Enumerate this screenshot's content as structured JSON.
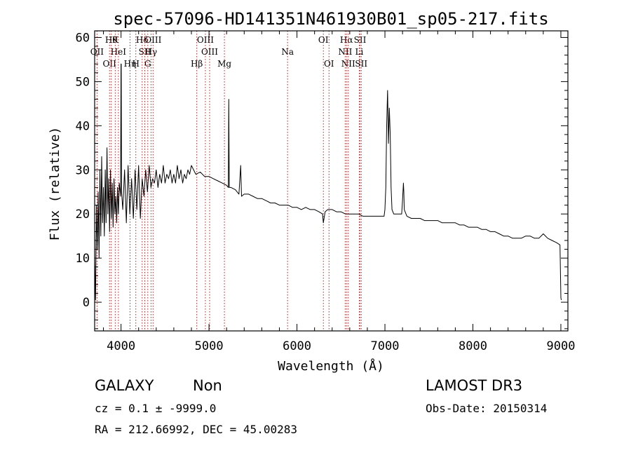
{
  "chart_data": {
    "type": "line",
    "title": "spec-57096-HD141351N461930B01_sp05-217.fits",
    "xlabel": "Wavelength (Å)",
    "ylabel": "Flux (relative)",
    "xlim": [
      3700,
      9080
    ],
    "ylim": [
      -6.5,
      61.5
    ],
    "x_ticks": [
      {
        "value": 4000,
        "label": "4000"
      },
      {
        "value": 5000,
        "label": "5000"
      },
      {
        "value": 6000,
        "label": "6000"
      },
      {
        "value": 7000,
        "label": "7000"
      },
      {
        "value": 8000,
        "label": "8000"
      },
      {
        "value": 9000,
        "label": "9000"
      }
    ],
    "y_ticks": [
      {
        "value": 0,
        "label": "0"
      },
      {
        "value": 10,
        "label": "10"
      },
      {
        "value": 20,
        "label": "20"
      },
      {
        "value": 30,
        "label": "30"
      },
      {
        "value": 40,
        "label": "40"
      },
      {
        "value": 50,
        "label": "50"
      },
      {
        "value": 60,
        "label": "60"
      }
    ],
    "series": [
      {
        "name": "spectrum",
        "color": "#000000",
        "points": [
          [
            3700,
            10
          ],
          [
            3710,
            0.5
          ],
          [
            3720,
            22
          ],
          [
            3730,
            12
          ],
          [
            3740,
            25
          ],
          [
            3750,
            10
          ],
          [
            3760,
            30
          ],
          [
            3770,
            15
          ],
          [
            3780,
            33
          ],
          [
            3790,
            18
          ],
          [
            3800,
            26
          ],
          [
            3810,
            15
          ],
          [
            3820,
            30
          ],
          [
            3830,
            18
          ],
          [
            3840,
            35
          ],
          [
            3850,
            20
          ],
          [
            3860,
            28
          ],
          [
            3870,
            16
          ],
          [
            3880,
            30
          ],
          [
            3890,
            19
          ],
          [
            3900,
            27
          ],
          [
            3910,
            17
          ],
          [
            3920,
            28
          ],
          [
            3930,
            20
          ],
          [
            3940,
            24
          ],
          [
            3950,
            18
          ],
          [
            3960,
            26
          ],
          [
            3970,
            20
          ],
          [
            3980,
            27
          ],
          [
            3995,
            24
          ],
          [
            4000,
            54
          ],
          [
            4002,
            54
          ],
          [
            4006,
            25
          ],
          [
            4020,
            21
          ],
          [
            4040,
            30
          ],
          [
            4060,
            18
          ],
          [
            4080,
            31
          ],
          [
            4100,
            20
          ],
          [
            4120,
            28
          ],
          [
            4140,
            19
          ],
          [
            4160,
            30
          ],
          [
            4180,
            21
          ],
          [
            4200,
            31
          ],
          [
            4220,
            19
          ],
          [
            4240,
            28
          ],
          [
            4260,
            24
          ],
          [
            4280,
            30
          ],
          [
            4300,
            25
          ],
          [
            4320,
            31
          ],
          [
            4340,
            26
          ],
          [
            4360,
            28
          ],
          [
            4380,
            27
          ],
          [
            4400,
            30
          ],
          [
            4420,
            26
          ],
          [
            4440,
            29
          ],
          [
            4460,
            27
          ],
          [
            4480,
            31
          ],
          [
            4500,
            27
          ],
          [
            4520,
            29
          ],
          [
            4540,
            28
          ],
          [
            4560,
            30
          ],
          [
            4580,
            27
          ],
          [
            4600,
            29
          ],
          [
            4620,
            27
          ],
          [
            4640,
            31
          ],
          [
            4660,
            28
          ],
          [
            4680,
            30
          ],
          [
            4700,
            27
          ],
          [
            4720,
            29
          ],
          [
            4740,
            28
          ],
          [
            4760,
            30
          ],
          [
            4780,
            29
          ],
          [
            4800,
            31
          ],
          [
            4850,
            29
          ],
          [
            4900,
            29.5
          ],
          [
            4950,
            28.5
          ],
          [
            5000,
            28.5
          ],
          [
            5050,
            28
          ],
          [
            5100,
            27.5
          ],
          [
            5150,
            27
          ],
          [
            5200,
            26.5
          ],
          [
            5220,
            26
          ],
          [
            5225,
            46
          ],
          [
            5230,
            26
          ],
          [
            5250,
            26
          ],
          [
            5300,
            25.5
          ],
          [
            5340,
            24.5
          ],
          [
            5360,
            31
          ],
          [
            5370,
            24
          ],
          [
            5400,
            24.5
          ],
          [
            5450,
            24.5
          ],
          [
            5500,
            24
          ],
          [
            5550,
            23.5
          ],
          [
            5600,
            23.5
          ],
          [
            5650,
            23
          ],
          [
            5700,
            22.5
          ],
          [
            5750,
            22.5
          ],
          [
            5800,
            22
          ],
          [
            5850,
            22
          ],
          [
            5900,
            22
          ],
          [
            5950,
            21.5
          ],
          [
            6000,
            21.5
          ],
          [
            6050,
            21
          ],
          [
            6100,
            21.5
          ],
          [
            6150,
            21
          ],
          [
            6200,
            21
          ],
          [
            6250,
            20.5
          ],
          [
            6290,
            20
          ],
          [
            6300,
            18
          ],
          [
            6320,
            20.5
          ],
          [
            6350,
            21
          ],
          [
            6400,
            21
          ],
          [
            6450,
            20.5
          ],
          [
            6500,
            20.5
          ],
          [
            6550,
            20
          ],
          [
            6600,
            20
          ],
          [
            6650,
            20
          ],
          [
            6700,
            20
          ],
          [
            6750,
            19.5
          ],
          [
            6800,
            19.5
          ],
          [
            6850,
            19.5
          ],
          [
            6900,
            19.5
          ],
          [
            6950,
            19.5
          ],
          [
            6990,
            19.5
          ],
          [
            7000,
            21
          ],
          [
            7010,
            26
          ],
          [
            7020,
            40
          ],
          [
            7030,
            48
          ],
          [
            7040,
            36
          ],
          [
            7050,
            44
          ],
          [
            7060,
            38
          ],
          [
            7070,
            26
          ],
          [
            7080,
            21
          ],
          [
            7100,
            20
          ],
          [
            7150,
            20
          ],
          [
            7190,
            20
          ],
          [
            7200,
            23
          ],
          [
            7210,
            27
          ],
          [
            7215,
            25
          ],
          [
            7220,
            21
          ],
          [
            7250,
            19.5
          ],
          [
            7300,
            19
          ],
          [
            7350,
            19
          ],
          [
            7400,
            19
          ],
          [
            7450,
            18.5
          ],
          [
            7500,
            18.5
          ],
          [
            7550,
            18.5
          ],
          [
            7600,
            18.5
          ],
          [
            7650,
            18
          ],
          [
            7700,
            18
          ],
          [
            7750,
            18
          ],
          [
            7800,
            18
          ],
          [
            7850,
            17.5
          ],
          [
            7900,
            17.5
          ],
          [
            7950,
            17
          ],
          [
            8000,
            17
          ],
          [
            8050,
            17
          ],
          [
            8100,
            16.5
          ],
          [
            8150,
            16.5
          ],
          [
            8200,
            16
          ],
          [
            8250,
            16
          ],
          [
            8300,
            15.5
          ],
          [
            8350,
            15
          ],
          [
            8400,
            15
          ],
          [
            8450,
            14.5
          ],
          [
            8500,
            14.5
          ],
          [
            8550,
            14.5
          ],
          [
            8600,
            15
          ],
          [
            8650,
            15
          ],
          [
            8700,
            14.5
          ],
          [
            8750,
            14.5
          ],
          [
            8800,
            15.5
          ],
          [
            8850,
            14.5
          ],
          [
            8900,
            14
          ],
          [
            8950,
            13.5
          ],
          [
            8990,
            13
          ],
          [
            9000,
            1
          ],
          [
            9005,
            0.5
          ]
        ]
      }
    ],
    "line_markers": [
      {
        "x": 3727,
        "label": "OII",
        "row": 1
      },
      {
        "x": 3869,
        "label": "OII",
        "row": 2
      },
      {
        "x": 3889,
        "label": "Hθ",
        "row": 0
      },
      {
        "x": 3970,
        "label": "HeI",
        "row": 1
      },
      {
        "x": 4102,
        "label": "Hη",
        "row": 2
      },
      {
        "x": 3934,
        "label": "K",
        "row": 0
      },
      {
        "x": 4168,
        "label": "H",
        "row": 2
      },
      {
        "x": 4240,
        "label": "Hδ",
        "row": 0
      },
      {
        "x": 4270,
        "label": "SII",
        "row": 1
      },
      {
        "x": 4364,
        "label": "OIII",
        "row": 0
      },
      {
        "x": 4341,
        "label": "Hγ",
        "row": 1
      },
      {
        "x": 4304,
        "label": "G",
        "row": 2
      },
      {
        "x": 4861,
        "label": "Hβ",
        "row": 2
      },
      {
        "x": 4959,
        "label": "OIII",
        "row": 0
      },
      {
        "x": 5007,
        "label": "OIII",
        "row": 1
      },
      {
        "x": 5175,
        "label": "Mg",
        "row": 2
      },
      {
        "x": 5893,
        "label": "Na",
        "row": 1
      },
      {
        "x": 6300,
        "label": "OI",
        "row": 0
      },
      {
        "x": 6364,
        "label": "OI",
        "row": 2
      },
      {
        "x": 6563,
        "label": "Hα",
        "row": 0
      },
      {
        "x": 6548,
        "label": "NII",
        "row": 1
      },
      {
        "x": 6583,
        "label": "NII",
        "row": 2
      },
      {
        "x": 6717,
        "label": "SII",
        "row": 0
      },
      {
        "x": 6708,
        "label": "Li",
        "row": 1
      },
      {
        "x": 6731,
        "label": "SII",
        "row": 2
      }
    ]
  },
  "info": {
    "object_class": "GALAXY",
    "subclass": "Non",
    "survey": "LAMOST DR3",
    "redshift_text": "cz = 0.1 ± -9999.0",
    "obs_date_text": "Obs-Date: 20150314",
    "coords_text": "RA = 212.66992, DEC =  45.00283"
  }
}
